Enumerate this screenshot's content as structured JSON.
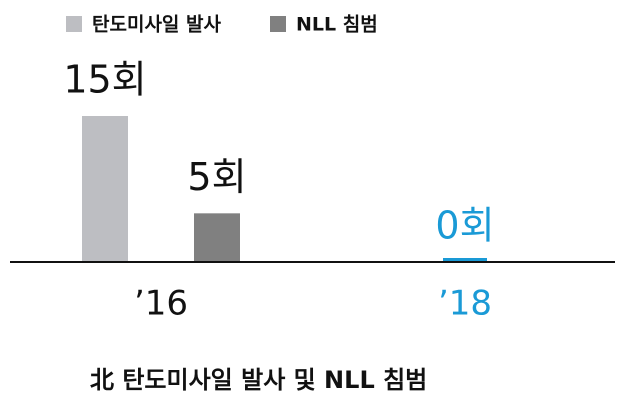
{
  "chart_data": {
    "type": "bar",
    "title": "北 탄도미사일 발사 및 NLL 침범",
    "categories": [
      "’16",
      "’18"
    ],
    "series": [
      {
        "name": "탄도미사일 발사",
        "color": "#bdbec2",
        "values": [
          15,
          0
        ],
        "value_labels": [
          "15회",
          "0회"
        ]
      },
      {
        "name": "NLL 침범",
        "color": "#808080",
        "values": [
          5,
          0
        ],
        "value_labels": [
          "5회",
          null
        ]
      }
    ],
    "ylim": [
      0,
      15
    ],
    "highlight_index": 1,
    "highlight_color": "#1a9ad6"
  }
}
